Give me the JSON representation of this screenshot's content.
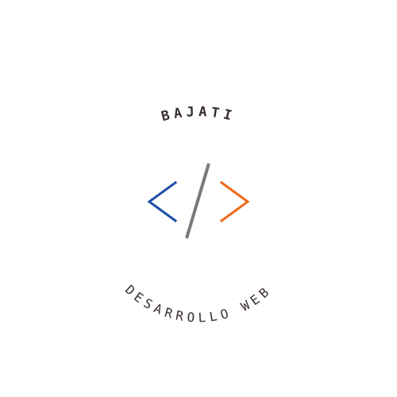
{
  "logo": {
    "brand_name": "BAJATI",
    "tagline": "DESARROLLO WEB",
    "icon": "code-brackets-icon"
  },
  "colors": {
    "text": "#3a2f2f",
    "left_bracket": "#1d4fa8",
    "slash": "#7a7a7a",
    "right_bracket": "#ef6a1c",
    "background": "#ffffff"
  }
}
